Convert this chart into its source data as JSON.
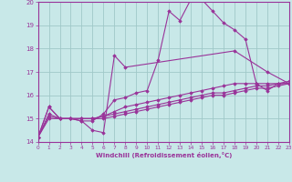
{
  "background_color": "#c8e8e8",
  "grid_color": "#a0c8c8",
  "line_color": "#993399",
  "marker": "D",
  "xlabel": "Windchill (Refroidissement éolien,°C)",
  "xlim": [
    0,
    23
  ],
  "ylim": [
    14,
    20
  ],
  "yticks": [
    14,
    15,
    16,
    17,
    18,
    19,
    20
  ],
  "xticks": [
    0,
    1,
    2,
    3,
    4,
    5,
    6,
    7,
    8,
    9,
    10,
    11,
    12,
    13,
    14,
    15,
    16,
    17,
    18,
    19,
    20,
    21,
    22,
    23
  ],
  "series": [
    [
      14.2,
      15.5,
      15.0,
      15.0,
      14.9,
      14.5,
      14.4,
      17.7,
      17.2,
      null,
      null,
      null,
      null,
      null,
      null,
      null,
      null,
      null,
      17.9,
      null,
      null,
      17.0,
      null,
      16.5
    ],
    [
      14.2,
      15.5,
      15.0,
      15.0,
      14.9,
      14.9,
      15.2,
      15.8,
      15.9,
      16.1,
      16.2,
      17.5,
      19.6,
      19.2,
      20.1,
      20.1,
      19.6,
      19.1,
      18.8,
      18.4,
      16.5,
      16.2,
      16.5,
      16.5
    ],
    [
      14.2,
      15.2,
      15.0,
      15.0,
      15.0,
      15.0,
      15.1,
      15.3,
      15.5,
      15.6,
      15.7,
      15.8,
      15.9,
      16.0,
      16.1,
      16.2,
      16.3,
      16.4,
      16.5,
      16.5,
      16.5,
      16.5,
      16.5,
      16.6
    ],
    [
      14.2,
      15.1,
      15.0,
      15.0,
      15.0,
      15.0,
      15.1,
      15.2,
      15.3,
      15.4,
      15.5,
      15.6,
      15.7,
      15.8,
      15.9,
      16.0,
      16.1,
      16.1,
      16.2,
      16.3,
      16.4,
      16.4,
      16.5,
      16.5
    ],
    [
      14.2,
      15.0,
      15.0,
      15.0,
      15.0,
      15.0,
      15.0,
      15.1,
      15.2,
      15.3,
      15.4,
      15.5,
      15.6,
      15.7,
      15.8,
      15.9,
      16.0,
      16.0,
      16.1,
      16.2,
      16.3,
      16.3,
      16.4,
      16.5
    ]
  ]
}
